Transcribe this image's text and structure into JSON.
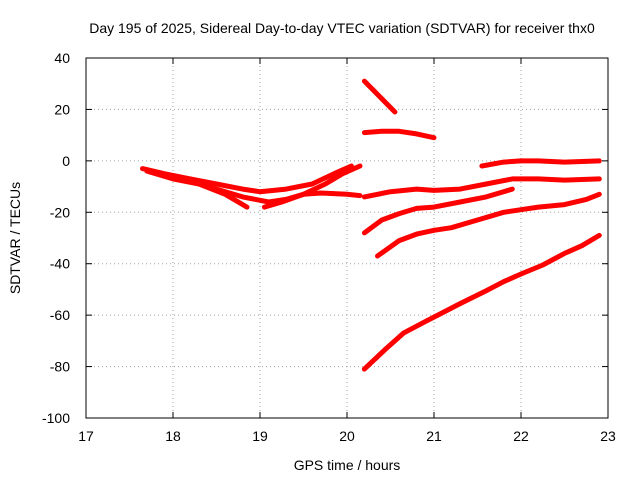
{
  "chart_data": {
    "type": "line",
    "title": "Day 195 of 2025, Sidereal Day-to-day VTEC variation (SDTVAR) for receiver thx0",
    "xlabel": "GPS time / hours",
    "ylabel": "SDTVAR / TECUs",
    "xlim": [
      17,
      23
    ],
    "ylim": [
      -100,
      40
    ],
    "xticks": [
      17,
      18,
      19,
      20,
      21,
      22,
      23
    ],
    "yticks": [
      -100,
      -80,
      -60,
      -40,
      -20,
      0,
      20,
      40
    ],
    "grid": true,
    "line_color": "#ff0000",
    "series": [
      {
        "points": [
          [
            17.65,
            -3
          ],
          [
            17.9,
            -5
          ],
          [
            18.2,
            -7
          ],
          [
            18.5,
            -9
          ],
          [
            18.8,
            -11
          ],
          [
            19.0,
            -12
          ],
          [
            19.3,
            -11
          ],
          [
            19.6,
            -9
          ],
          [
            19.85,
            -5
          ],
          [
            20.05,
            -2
          ]
        ]
      },
      {
        "points": [
          [
            17.7,
            -4
          ],
          [
            18.0,
            -7
          ],
          [
            18.3,
            -9
          ],
          [
            18.6,
            -13
          ],
          [
            18.85,
            -18
          ]
        ]
      },
      {
        "points": [
          [
            18.2,
            -8
          ],
          [
            18.5,
            -11
          ],
          [
            18.8,
            -14
          ],
          [
            19.1,
            -16
          ],
          [
            19.3,
            -15
          ],
          [
            19.5,
            -13
          ],
          [
            19.7,
            -12.5
          ],
          [
            20.0,
            -13
          ],
          [
            20.15,
            -13.5
          ]
        ]
      },
      {
        "points": [
          [
            19.05,
            -18
          ],
          [
            19.25,
            -16
          ],
          [
            19.5,
            -13
          ],
          [
            19.75,
            -9
          ],
          [
            19.95,
            -5
          ],
          [
            20.15,
            -2
          ]
        ]
      },
      {
        "points": [
          [
            20.2,
            31
          ],
          [
            20.55,
            19
          ]
        ]
      },
      {
        "points": [
          [
            20.2,
            11
          ],
          [
            20.4,
            11.5
          ],
          [
            20.6,
            11.5
          ],
          [
            20.8,
            10.5
          ],
          [
            21.0,
            9
          ]
        ]
      },
      {
        "points": [
          [
            20.2,
            -14
          ],
          [
            20.5,
            -12
          ],
          [
            20.8,
            -11
          ],
          [
            21.0,
            -11.5
          ],
          [
            21.3,
            -11
          ],
          [
            21.6,
            -9
          ],
          [
            21.9,
            -7
          ],
          [
            22.2,
            -7
          ],
          [
            22.5,
            -7.5
          ],
          [
            22.9,
            -7
          ]
        ]
      },
      {
        "points": [
          [
            21.55,
            -2
          ],
          [
            21.8,
            -0.5
          ],
          [
            22.0,
            0
          ],
          [
            22.2,
            0
          ],
          [
            22.5,
            -0.5
          ],
          [
            22.9,
            0
          ]
        ]
      },
      {
        "points": [
          [
            20.2,
            -28
          ],
          [
            20.4,
            -23
          ],
          [
            20.6,
            -20.5
          ],
          [
            20.8,
            -18.5
          ],
          [
            21.0,
            -18
          ],
          [
            21.3,
            -16
          ],
          [
            21.6,
            -14
          ],
          [
            21.9,
            -11
          ]
        ]
      },
      {
        "points": [
          [
            20.35,
            -37
          ],
          [
            20.6,
            -31
          ],
          [
            20.8,
            -28.5
          ],
          [
            21.0,
            -27
          ],
          [
            21.2,
            -26
          ],
          [
            21.5,
            -23
          ],
          [
            21.8,
            -20
          ],
          [
            22.0,
            -19
          ],
          [
            22.2,
            -18
          ],
          [
            22.5,
            -17
          ],
          [
            22.75,
            -15
          ],
          [
            22.9,
            -13
          ]
        ]
      },
      {
        "points": [
          [
            20.2,
            -81
          ],
          [
            20.45,
            -73
          ],
          [
            20.65,
            -67
          ],
          [
            20.9,
            -62.5
          ],
          [
            21.1,
            -59
          ],
          [
            21.3,
            -55.5
          ],
          [
            21.6,
            -50.5
          ],
          [
            21.8,
            -47
          ],
          [
            22.0,
            -44
          ],
          [
            22.25,
            -40.5
          ],
          [
            22.5,
            -36
          ],
          [
            22.7,
            -33
          ],
          [
            22.9,
            -29
          ]
        ]
      }
    ]
  }
}
